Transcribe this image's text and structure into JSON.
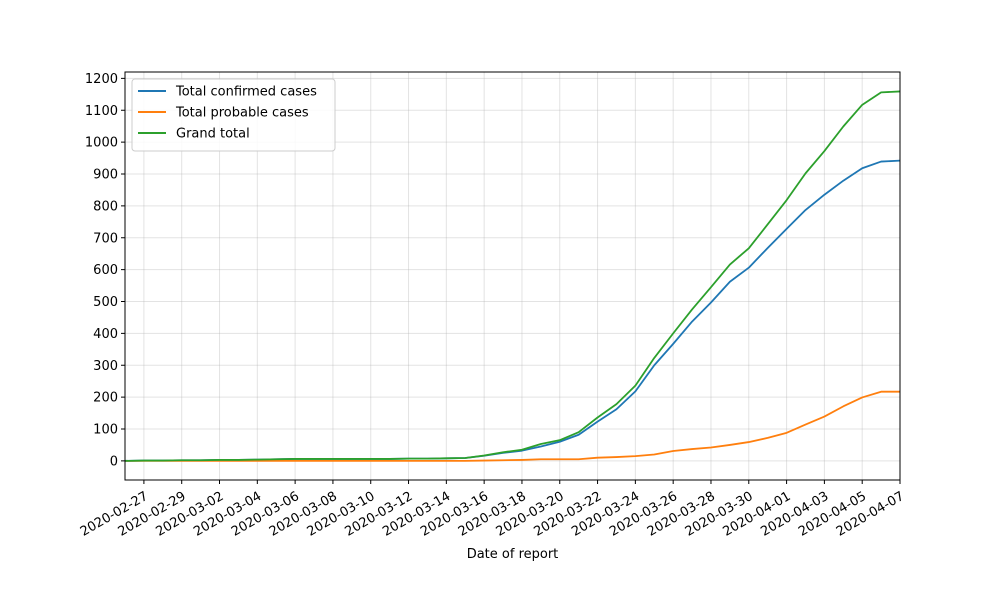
{
  "chart_data": {
    "type": "line",
    "title": "",
    "xlabel": "Date of report",
    "ylabel": "",
    "xlim": [
      "2020-02-26",
      "2020-04-07"
    ],
    "ylim": [
      -60,
      1220
    ],
    "grid": true,
    "legend_position": "top-left",
    "x_tick_labels": [
      "2020-02-27",
      "2020-02-29",
      "2020-03-02",
      "2020-03-04",
      "2020-03-06",
      "2020-03-08",
      "2020-03-10",
      "2020-03-12",
      "2020-03-14",
      "2020-03-16",
      "2020-03-18",
      "2020-03-20",
      "2020-03-22",
      "2020-03-24",
      "2020-03-26",
      "2020-03-28",
      "2020-03-30",
      "2020-04-01",
      "2020-04-03",
      "2020-04-05",
      "2020-04-07"
    ],
    "y_ticks": [
      0,
      100,
      200,
      300,
      400,
      500,
      600,
      700,
      800,
      900,
      1000,
      1100,
      1200
    ],
    "x": [
      "2020-02-26",
      "2020-02-27",
      "2020-02-28",
      "2020-02-29",
      "2020-03-01",
      "2020-03-02",
      "2020-03-03",
      "2020-03-04",
      "2020-03-05",
      "2020-03-06",
      "2020-03-07",
      "2020-03-08",
      "2020-03-09",
      "2020-03-10",
      "2020-03-11",
      "2020-03-12",
      "2020-03-13",
      "2020-03-14",
      "2020-03-15",
      "2020-03-16",
      "2020-03-17",
      "2020-03-18",
      "2020-03-19",
      "2020-03-20",
      "2020-03-21",
      "2020-03-22",
      "2020-03-23",
      "2020-03-24",
      "2020-03-25",
      "2020-03-26",
      "2020-03-27",
      "2020-03-28",
      "2020-03-29",
      "2020-03-30",
      "2020-03-31",
      "2020-04-01",
      "2020-04-02",
      "2020-04-03",
      "2020-04-04",
      "2020-04-05",
      "2020-04-06",
      "2020-04-07"
    ],
    "series": [
      {
        "name": "Total confirmed cases",
        "color": "#1f77b4",
        "values": [
          0,
          1,
          1,
          2,
          2,
          3,
          3,
          4,
          5,
          6,
          6,
          6,
          6,
          6,
          6,
          7,
          7,
          8,
          9,
          16,
          25,
          32,
          45,
          60,
          82,
          123,
          162,
          218,
          300,
          367,
          437,
          497,
          562,
          606,
          668,
          728,
          787,
          835,
          879,
          918,
          939,
          942
        ]
      },
      {
        "name": "Total probable cases",
        "color": "#ff7f0e",
        "values": [
          0,
          0,
          0,
          0,
          0,
          0,
          0,
          0,
          0,
          0,
          0,
          0,
          0,
          0,
          0,
          0,
          0,
          0,
          0,
          1,
          2,
          3,
          5,
          5,
          5,
          10,
          12,
          15,
          20,
          31,
          37,
          42,
          50,
          59,
          72,
          88,
          114,
          139,
          171,
          199,
          217,
          217
        ]
      },
      {
        "name": "Grand total",
        "color": "#2ca02c",
        "values": [
          0,
          1,
          1,
          2,
          2,
          3,
          3,
          4,
          5,
          6,
          6,
          6,
          6,
          6,
          6,
          7,
          7,
          8,
          9,
          17,
          27,
          35,
          53,
          65,
          90,
          136,
          178,
          236,
          323,
          400,
          475,
          545,
          616,
          667,
          742,
          818,
          902,
          972,
          1049,
          1117,
          1156,
          1159
        ]
      }
    ]
  }
}
